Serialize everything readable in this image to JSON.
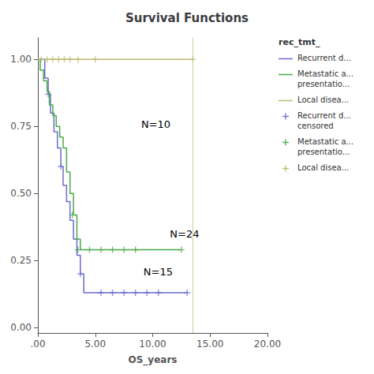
{
  "chart_data": {
    "type": "line",
    "title": "Survival Functions",
    "xlabel": "OS_years",
    "xlim": [
      0,
      20
    ],
    "ylim": [
      -0.02,
      1.08
    ],
    "xticks": [
      {
        "value": 0,
        "label": ".00"
      },
      {
        "value": 5.0,
        "label": "5.00"
      },
      {
        "value": 10.0,
        "label": "10.00"
      },
      {
        "value": 15.0,
        "label": "15.00"
      },
      {
        "value": 20.0,
        "label": "20.00"
      }
    ],
    "yticks": [
      {
        "value": 0.0,
        "label": "0.00"
      },
      {
        "value": 0.25,
        "label": "0.25"
      },
      {
        "value": 0.5,
        "label": "0.50"
      },
      {
        "value": 0.75,
        "label": "0.75"
      },
      {
        "value": 1.0,
        "label": "1.00"
      }
    ],
    "grid": false,
    "legend": "right",
    "legend_title": "rec_tmt_",
    "series": [
      {
        "name": "Recurrent d...",
        "type": "step",
        "color": "#6b6bcd",
        "x": [
          0,
          0.4,
          0.6,
          0.9,
          1.1,
          1.4,
          1.7,
          2.0,
          2.2,
          2.5,
          2.8,
          3.1,
          3.4,
          3.7,
          4.0,
          4.5,
          5.0,
          13.0
        ],
        "values": [
          1.0,
          1.0,
          0.93,
          0.87,
          0.8,
          0.73,
          0.67,
          0.6,
          0.53,
          0.47,
          0.4,
          0.33,
          0.27,
          0.2,
          0.13,
          0.13,
          0.13,
          0.13
        ]
      },
      {
        "name": "Metastatic a...\npresentatio...",
        "type": "step",
        "color": "#4aaa4a",
        "x": [
          0,
          0.2,
          0.5,
          0.8,
          1.0,
          1.3,
          1.6,
          1.9,
          2.2,
          2.5,
          2.8,
          3.1,
          3.4,
          3.7,
          4.0,
          12.5
        ],
        "values": [
          1.0,
          0.96,
          0.92,
          0.88,
          0.83,
          0.79,
          0.75,
          0.71,
          0.67,
          0.58,
          0.5,
          0.42,
          0.33,
          0.29,
          0.29,
          0.29
        ]
      },
      {
        "name": "Local disea...",
        "type": "step",
        "color": "#bcb86e",
        "x": [
          0,
          13.5
        ],
        "values": [
          1.0,
          1.0
        ]
      },
      {
        "name": "Recurrent d...\ncensored",
        "type": "scatter",
        "marker": "plus",
        "color": "#6b6bcd",
        "x": [
          0.9,
          2.0,
          3.7,
          5.5,
          6.5,
          7.5,
          8.5,
          9.5,
          10.5,
          13.0
        ],
        "values": [
          0.87,
          0.6,
          0.2,
          0.13,
          0.13,
          0.13,
          0.13,
          0.13,
          0.13,
          0.13
        ]
      },
      {
        "name": "Metastatic a...\npresentatio...",
        "type": "scatter",
        "marker": "plus",
        "color": "#4aaa4a",
        "x": [
          3.0,
          3.5,
          4.5,
          5.5,
          6.5,
          7.5,
          8.5,
          12.5
        ],
        "values": [
          0.42,
          0.29,
          0.29,
          0.29,
          0.29,
          0.29,
          0.29,
          0.29
        ]
      },
      {
        "name": "Local disea...",
        "type": "scatter",
        "marker": "plus",
        "color": "#bcb86e",
        "x": [
          0.3,
          0.8,
          1.3,
          1.8,
          2.3,
          2.8,
          3.5,
          5.0,
          13.5
        ],
        "values": [
          1.0,
          1.0,
          1.0,
          1.0,
          1.0,
          1.0,
          1.0,
          1.0,
          1.0
        ]
      }
    ],
    "vlines": [
      {
        "x": 13.5,
        "color": "#bcb86e"
      }
    ],
    "annotations": [
      {
        "text": "N=10",
        "x": 9.0,
        "y": 0.74
      },
      {
        "text": "N=24",
        "x": 11.5,
        "y": 0.33
      },
      {
        "text": "N=15",
        "x": 9.2,
        "y": 0.19
      }
    ]
  }
}
